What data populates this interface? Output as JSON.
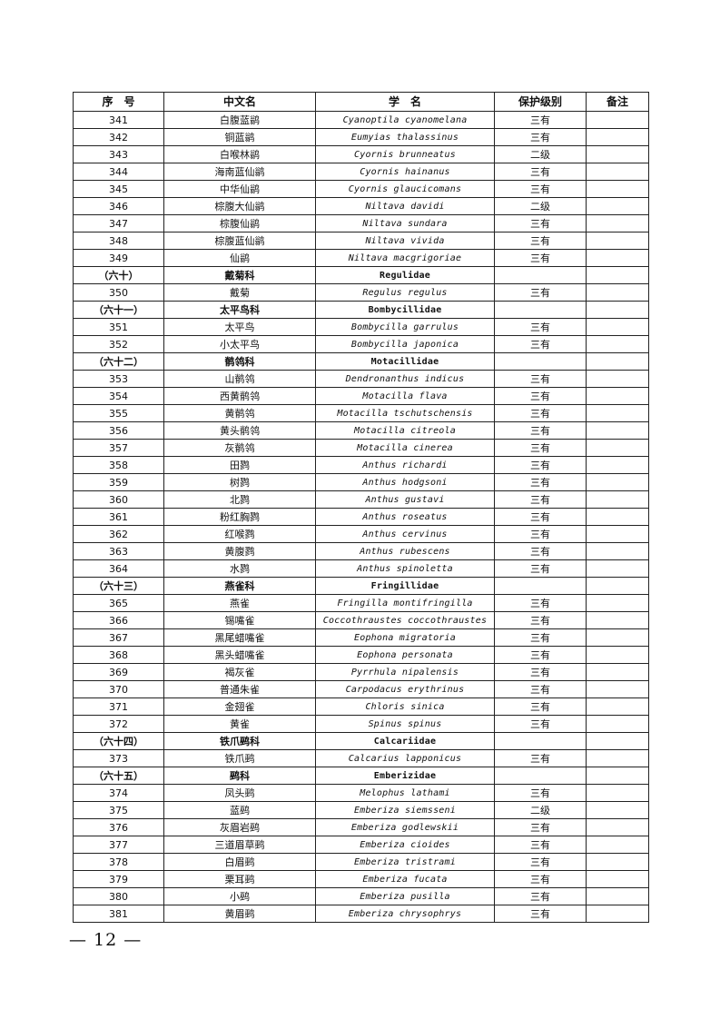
{
  "table": {
    "headers": [
      "序　号",
      "中文名",
      "学　名",
      "保护级别",
      "备注"
    ],
    "rows": [
      {
        "no": "341",
        "cn": "白腹蓝鹟",
        "sci": "Cyanoptila cyanomelana",
        "level": "三有",
        "note": "",
        "family": false
      },
      {
        "no": "342",
        "cn": "铜蓝鹟",
        "sci": "Eumyias thalassinus",
        "level": "三有",
        "note": "",
        "family": false
      },
      {
        "no": "343",
        "cn": "白喉林鹟",
        "sci": "Cyornis brunneatus",
        "level": "二级",
        "note": "",
        "family": false
      },
      {
        "no": "344",
        "cn": "海南蓝仙鹟",
        "sci": "Cyornis hainanus",
        "level": "三有",
        "note": "",
        "family": false
      },
      {
        "no": "345",
        "cn": "中华仙鹟",
        "sci": "Cyornis glaucicomans",
        "level": "三有",
        "note": "",
        "family": false
      },
      {
        "no": "346",
        "cn": "棕腹大仙鹟",
        "sci": "Niltava davidi",
        "level": "二级",
        "note": "",
        "family": false
      },
      {
        "no": "347",
        "cn": "棕腹仙鹟",
        "sci": "Niltava sundara",
        "level": "三有",
        "note": "",
        "family": false
      },
      {
        "no": "348",
        "cn": "棕腹蓝仙鹟",
        "sci": "Niltava vivida",
        "level": "三有",
        "note": "",
        "family": false
      },
      {
        "no": "349",
        "cn": "仙鹟",
        "sci": "Niltava macgrigoriae",
        "level": "三有",
        "note": "",
        "family": false
      },
      {
        "no": "（六十）",
        "cn": "戴菊科",
        "sci": "Regulidae",
        "level": "",
        "note": "",
        "family": true
      },
      {
        "no": "350",
        "cn": "戴菊",
        "sci": "Regulus regulus",
        "level": "三有",
        "note": "",
        "family": false
      },
      {
        "no": "（六十一）",
        "cn": "太平鸟科",
        "sci": "Bombycillidae",
        "level": "",
        "note": "",
        "family": true
      },
      {
        "no": "351",
        "cn": "太平鸟",
        "sci": "Bombycilla garrulus",
        "level": "三有",
        "note": "",
        "family": false
      },
      {
        "no": "352",
        "cn": "小太平鸟",
        "sci": "Bombycilla japonica",
        "level": "三有",
        "note": "",
        "family": false
      },
      {
        "no": "（六十二）",
        "cn": "鹡鸰科",
        "sci": "Motacillidae",
        "level": "",
        "note": "",
        "family": true
      },
      {
        "no": "353",
        "cn": "山鹡鸰",
        "sci": "Dendronanthus indicus",
        "level": "三有",
        "note": "",
        "family": false
      },
      {
        "no": "354",
        "cn": "西黄鹡鸰",
        "sci": "Motacilla flava",
        "level": "三有",
        "note": "",
        "family": false
      },
      {
        "no": "355",
        "cn": "黄鹡鸰",
        "sci": "Motacilla tschutschensis",
        "level": "三有",
        "note": "",
        "family": false
      },
      {
        "no": "356",
        "cn": "黄头鹡鸰",
        "sci": "Motacilla citreola",
        "level": "三有",
        "note": "",
        "family": false
      },
      {
        "no": "357",
        "cn": "灰鹡鸰",
        "sci": "Motacilla cinerea",
        "level": "三有",
        "note": "",
        "family": false
      },
      {
        "no": "358",
        "cn": "田鹨",
        "sci": "Anthus richardi",
        "level": "三有",
        "note": "",
        "family": false
      },
      {
        "no": "359",
        "cn": "树鹨",
        "sci": "Anthus hodgsoni",
        "level": "三有",
        "note": "",
        "family": false
      },
      {
        "no": "360",
        "cn": "北鹨",
        "sci": "Anthus gustavi",
        "level": "三有",
        "note": "",
        "family": false
      },
      {
        "no": "361",
        "cn": "粉红胸鹨",
        "sci": "Anthus roseatus",
        "level": "三有",
        "note": "",
        "family": false
      },
      {
        "no": "362",
        "cn": "红喉鹨",
        "sci": "Anthus cervinus",
        "level": "三有",
        "note": "",
        "family": false
      },
      {
        "no": "363",
        "cn": "黄腹鹨",
        "sci": "Anthus rubescens",
        "level": "三有",
        "note": "",
        "family": false
      },
      {
        "no": "364",
        "cn": "水鹨",
        "sci": "Anthus spinoletta",
        "level": "三有",
        "note": "",
        "family": false
      },
      {
        "no": "（六十三）",
        "cn": "燕雀科",
        "sci": "Fringillidae",
        "level": "",
        "note": "",
        "family": true
      },
      {
        "no": "365",
        "cn": "燕雀",
        "sci": "Fringilla montifringilla",
        "level": "三有",
        "note": "",
        "family": false
      },
      {
        "no": "366",
        "cn": "锡嘴雀",
        "sci": "Coccothraustes coccothraustes",
        "level": "三有",
        "note": "",
        "family": false
      },
      {
        "no": "367",
        "cn": "黑尾蜡嘴雀",
        "sci": "Eophona migratoria",
        "level": "三有",
        "note": "",
        "family": false
      },
      {
        "no": "368",
        "cn": "黑头蜡嘴雀",
        "sci": "Eophona personata",
        "level": "三有",
        "note": "",
        "family": false
      },
      {
        "no": "369",
        "cn": "褐灰雀",
        "sci": "Pyrrhula nipalensis",
        "level": "三有",
        "note": "",
        "family": false
      },
      {
        "no": "370",
        "cn": "普通朱雀",
        "sci": "Carpodacus erythrinus",
        "level": "三有",
        "note": "",
        "family": false
      },
      {
        "no": "371",
        "cn": "金翅雀",
        "sci": "Chloris sinica",
        "level": "三有",
        "note": "",
        "family": false
      },
      {
        "no": "372",
        "cn": "黄雀",
        "sci": "Spinus spinus",
        "level": "三有",
        "note": "",
        "family": false
      },
      {
        "no": "（六十四）",
        "cn": "铁爪鹀科",
        "sci": "Calcariidae",
        "level": "",
        "note": "",
        "family": true
      },
      {
        "no": "373",
        "cn": "铁爪鹀",
        "sci": "Calcarius lapponicus",
        "level": "三有",
        "note": "",
        "family": false
      },
      {
        "no": "（六十五）",
        "cn": "鹀科",
        "sci": "Emberizidae",
        "level": "",
        "note": "",
        "family": true
      },
      {
        "no": "374",
        "cn": "凤头鹀",
        "sci": "Melophus lathami",
        "level": "三有",
        "note": "",
        "family": false
      },
      {
        "no": "375",
        "cn": "蓝鹀",
        "sci": "Emberiza siemsseni",
        "level": "二级",
        "note": "",
        "family": false
      },
      {
        "no": "376",
        "cn": "灰眉岩鹀",
        "sci": "Emberiza godlewskii",
        "level": "三有",
        "note": "",
        "family": false
      },
      {
        "no": "377",
        "cn": "三道眉草鹀",
        "sci": "Emberiza cioides",
        "level": "三有",
        "note": "",
        "family": false
      },
      {
        "no": "378",
        "cn": "白眉鹀",
        "sci": "Emberiza tristrami",
        "level": "三有",
        "note": "",
        "family": false
      },
      {
        "no": "379",
        "cn": "栗耳鹀",
        "sci": "Emberiza fucata",
        "level": "三有",
        "note": "",
        "family": false
      },
      {
        "no": "380",
        "cn": "小鹀",
        "sci": "Emberiza pusilla",
        "level": "三有",
        "note": "",
        "family": false
      },
      {
        "no": "381",
        "cn": "黄眉鹀",
        "sci": "Emberiza chrysophrys",
        "level": "三有",
        "note": "",
        "family": false
      }
    ]
  },
  "footer": {
    "page_number": "— 12 —"
  }
}
